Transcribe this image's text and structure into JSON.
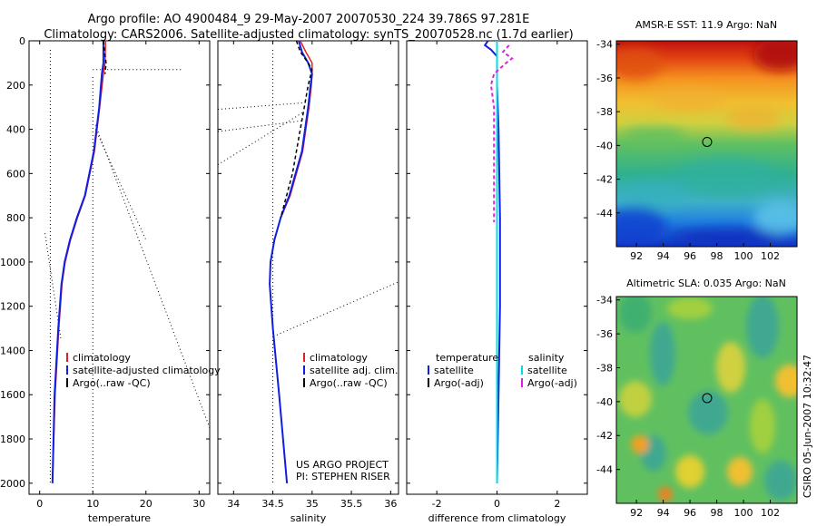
{
  "figure": {
    "title_line1": "Argo profile: AO 4900484_9 29-May-2007 20070530_224 39.786S 97.281E",
    "title_line2": "Climatology: CARS2006. Satellite-adjusted climatology: synTS_20070528.nc (1.7d earlier)",
    "footer_credit": "CSIRO 05-Jun-2007 10:32:47",
    "project_line1": "US ARGO PROJECT",
    "project_line2": "PI: STEPHEN RISER"
  },
  "colors": {
    "climatology": "#e02020",
    "satellite": "#1020e0",
    "argo": "#000000",
    "sat_salinity": "#00e0e0",
    "argo_salinity": "#e020e0"
  },
  "chart_data": [
    {
      "type": "line",
      "name": "temperature-panel",
      "xlabel": "temperature",
      "ylabel": "",
      "xlim": [
        -2,
        32
      ],
      "ylim": [
        2050,
        0
      ],
      "xticks": [
        0,
        10,
        20,
        30
      ],
      "yticks": [
        0,
        200,
        400,
        600,
        800,
        1000,
        1200,
        1400,
        1600,
        1800,
        2000
      ],
      "legend": [
        "climatology",
        "satellite-adjusted climatology",
        "Argo(..raw -QC)"
      ],
      "series": [
        {
          "name": "climatology",
          "depth": [
            0,
            100,
            150,
            300,
            500,
            700,
            800,
            900,
            1000,
            1100,
            1300,
            1600,
            2000
          ],
          "values": [
            12.4,
            12.3,
            12.0,
            11.3,
            10.3,
            8.6,
            7.1,
            5.8,
            4.8,
            4.2,
            3.6,
            2.9,
            2.4
          ]
        },
        {
          "name": "satellite-adjusted climatology",
          "depth": [
            0,
            100,
            150,
            300,
            500,
            700,
            800,
            900,
            1000,
            1100,
            1300,
            1600,
            2000
          ],
          "values": [
            12.0,
            12.0,
            11.7,
            11.2,
            10.2,
            8.5,
            7.0,
            5.7,
            4.7,
            4.1,
            3.5,
            2.8,
            2.4
          ]
        },
        {
          "name": "Argo(..raw -QC)",
          "depth": [
            0,
            50,
            100,
            150
          ],
          "values": [
            12.0,
            12.2,
            12.5,
            12.3
          ]
        }
      ]
    },
    {
      "type": "line",
      "name": "salinity-panel",
      "xlabel": "salinity",
      "ylabel": "",
      "xlim": [
        33.8,
        36.1
      ],
      "ylim": [
        2050,
        0
      ],
      "xticks": [
        34,
        34.5,
        35,
        35.5,
        36
      ],
      "yticks": [
        0,
        200,
        400,
        600,
        800,
        1000,
        1200,
        1400,
        1600,
        1800,
        2000
      ],
      "legend": [
        "climatology",
        "satellite adj. clim.",
        "Argo(..raw -QC)"
      ],
      "series": [
        {
          "name": "climatology",
          "depth": [
            0,
            50,
            100,
            150,
            200,
            300,
            500,
            700,
            800,
            900,
            1000,
            1100,
            1300,
            1600,
            2000
          ],
          "values": [
            34.85,
            34.92,
            35.0,
            35.0,
            34.99,
            34.96,
            34.88,
            34.72,
            34.6,
            34.52,
            34.47,
            34.46,
            34.5,
            34.58,
            34.68
          ]
        },
        {
          "name": "satellite adj. clim.",
          "depth": [
            0,
            50,
            100,
            150,
            200,
            300,
            500,
            700,
            800,
            900,
            1000,
            1100,
            1300,
            1600,
            2000
          ],
          "values": [
            34.83,
            34.87,
            34.95,
            35.0,
            34.98,
            34.95,
            34.87,
            34.71,
            34.6,
            34.52,
            34.47,
            34.46,
            34.5,
            34.58,
            34.68
          ]
        },
        {
          "name": "Argo(..raw -QC)",
          "depth": [
            0,
            50,
            100,
            130,
            200,
            300,
            400,
            600,
            800
          ],
          "values": [
            34.8,
            34.85,
            34.95,
            35.0,
            34.95,
            34.9,
            34.85,
            34.75,
            34.6
          ]
        }
      ]
    },
    {
      "type": "line",
      "name": "difference-panel",
      "xlabel": "difference from climatology",
      "ylabel": "",
      "xlim": [
        -3,
        3
      ],
      "ylim": [
        2050,
        0
      ],
      "xticks": [
        -2,
        0,
        2
      ],
      "yticks": [
        0,
        200,
        400,
        600,
        800,
        1000,
        1200,
        1400,
        1600,
        1800,
        2000
      ],
      "legend_groups": [
        "temperature",
        "salinity"
      ],
      "legend": [
        "satellite",
        "Argo(-adj)",
        "satellite",
        "Argo(-adj)"
      ],
      "series": [
        {
          "name": "temperature satellite",
          "depth": [
            0,
            20,
            40,
            70,
            100,
            200,
            400,
            800,
            1200,
            1600,
            2000
          ],
          "values": [
            -0.3,
            -0.4,
            -0.2,
            0.0,
            0.0,
            0.0,
            0.05,
            0.1,
            0.1,
            0.05,
            0.0
          ]
        },
        {
          "name": "salinity satellite",
          "depth": [
            0,
            100,
            400,
            800,
            1200,
            1600,
            2000
          ],
          "values": [
            0.0,
            0.0,
            0.0,
            0.0,
            0.0,
            0.0,
            0.0
          ]
        },
        {
          "name": "salinity Argo(-adj)",
          "depth": [
            20,
            50,
            80,
            100,
            150,
            200,
            300,
            800,
            820
          ],
          "values": [
            0.4,
            0.2,
            0.5,
            0.3,
            -0.1,
            -0.2,
            -0.1,
            -0.1,
            -0.1
          ]
        }
      ]
    },
    {
      "type": "heatmap",
      "name": "amsr-sst-map",
      "title": "AMSR-E SST: 11.9 Argo: NaN",
      "xlim": [
        90.5,
        104
      ],
      "ylim": [
        -46,
        -33.8
      ],
      "xticks": [
        92,
        94,
        96,
        98,
        100,
        102
      ],
      "yticks": [
        -34,
        -36,
        -38,
        -40,
        -42,
        -44
      ],
      "marker": {
        "lon": 97.28,
        "lat": -39.79
      }
    },
    {
      "type": "heatmap",
      "name": "altimetric-sla-map",
      "title": "Altimetric SLA: 0.035 Argo: NaN",
      "xlim": [
        90.5,
        104
      ],
      "ylim": [
        -46,
        -33.8
      ],
      "xticks": [
        92,
        94,
        96,
        98,
        100,
        102
      ],
      "yticks": [
        -34,
        -36,
        -38,
        -40,
        -42,
        -44
      ],
      "marker": {
        "lon": 97.28,
        "lat": -39.79
      }
    }
  ]
}
